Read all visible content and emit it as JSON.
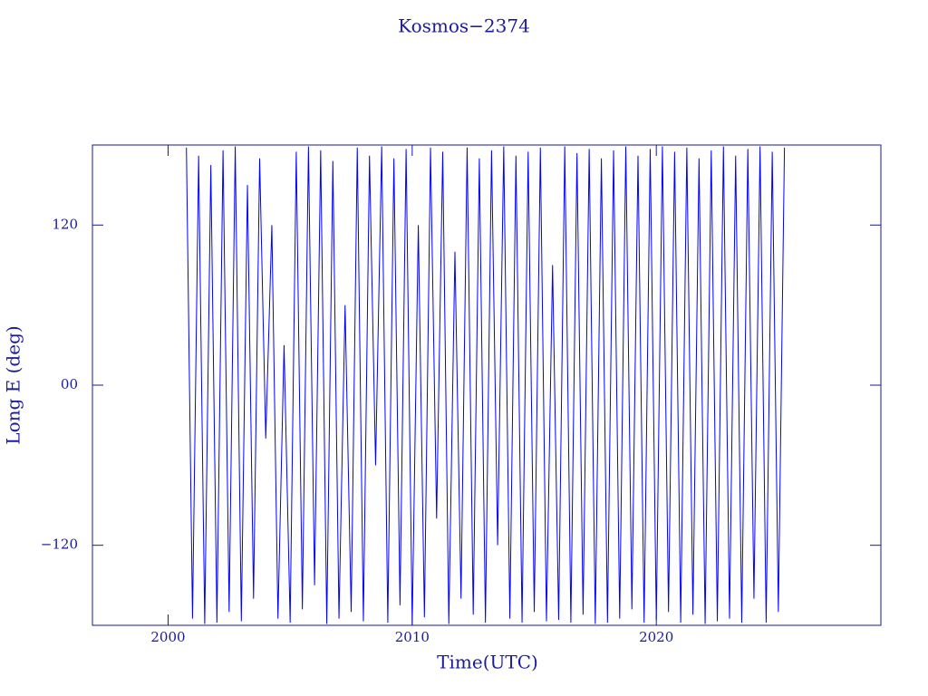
{
  "chart_data": {
    "type": "line",
    "title": "Kosmos−2374",
    "x_label": "Time(UTC)",
    "y_label": "Long E (deg)",
    "xlim": [
      1996.9,
      2029.2
    ],
    "xticks": [
      2000,
      2010,
      2020
    ],
    "ylim": [
      -180,
      180
    ],
    "yticks": [
      {
        "value": -120,
        "label": "−120"
      },
      {
        "value": 0,
        "label": "00"
      },
      120
    ],
    "grid": false,
    "series": [
      {
        "color": "#0000ff",
        "x": [
          2000.75,
          2001,
          2001.25,
          2001.5,
          2001.75,
          2002,
          2002.25,
          2002.5,
          2002.75,
          2003,
          2003.25,
          2003.5,
          2003.75,
          2004,
          2004.25,
          2004.5,
          2004.75,
          2005,
          2005.25,
          2005.5,
          2005.75,
          2006,
          2006.25,
          2006.5,
          2006.75,
          2007,
          2007.25,
          2007.5,
          2007.75,
          2008,
          2008.25,
          2008.5,
          2008.75,
          2009,
          2009.25,
          2009.5,
          2009.75,
          2010,
          2010.25,
          2010.5,
          2010.75,
          2011,
          2011.25,
          2011.5,
          2011.75,
          2012,
          2012.25,
          2012.5,
          2012.75,
          2013,
          2013.25,
          2013.5,
          2013.75,
          2014,
          2014.25,
          2014.5,
          2014.75,
          2015,
          2015.25,
          2015.5,
          2015.75,
          2016,
          2016.25,
          2016.5,
          2016.75,
          2017,
          2017.25,
          2017.5,
          2017.75,
          2018,
          2018.25,
          2018.5,
          2018.75,
          2019,
          2019.25,
          2019.5,
          2019.75,
          2020,
          2020.25,
          2020.5,
          2020.75,
          2021,
          2021.25,
          2021.5,
          2021.75,
          2022,
          2022.25,
          2022.5,
          2022.75,
          2023,
          2023.25,
          2023.5,
          2023.75,
          2024,
          2024.25,
          2024.5,
          2024.75,
          2025,
          2025.25
        ],
        "values": [
          178,
          -175,
          172,
          -179,
          165,
          -178,
          176,
          -170,
          179,
          -177,
          150,
          -160,
          170,
          -40,
          120,
          -175,
          30,
          -178,
          175,
          -168,
          179,
          -150,
          176,
          -179,
          168,
          -175,
          60,
          -170,
          178,
          -177,
          172,
          -60,
          179,
          -178,
          170,
          -165,
          177,
          -180,
          120,
          -174,
          178,
          -100,
          175,
          -179,
          100,
          -160,
          178,
          -172,
          170,
          -178,
          176,
          -120,
          179,
          -175,
          172,
          -178,
          175,
          -170,
          178,
          -177,
          90,
          -176,
          179,
          -178,
          174,
          -172,
          177,
          -179,
          170,
          -178,
          176,
          -175,
          179,
          -168,
          172,
          -178,
          177,
          -176,
          179,
          -170,
          175,
          -178,
          178,
          -172,
          170,
          -179,
          176,
          -177,
          179,
          -175,
          172,
          -178,
          177,
          -160,
          179,
          -178,
          175,
          -170,
          178
        ]
      }
    ]
  }
}
